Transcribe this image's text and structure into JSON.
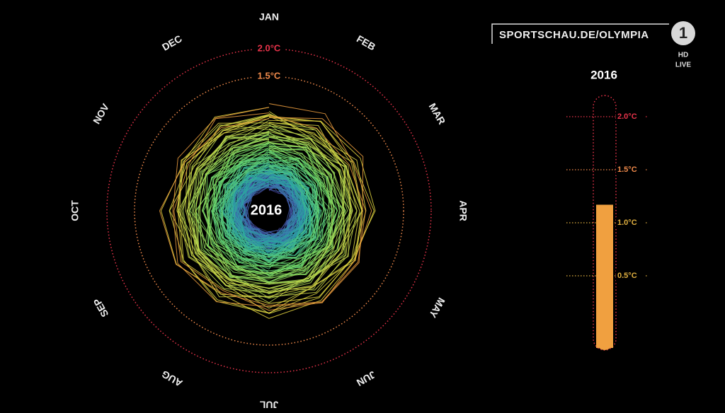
{
  "overlay": {
    "channel_url": "SPORTSCHAU.DE/OLYMPIA",
    "logo": "1",
    "badge": [
      "HD",
      "LIVE"
    ]
  },
  "spiral": {
    "center_label": "2016",
    "months": [
      "JAN",
      "FEB",
      "MAR",
      "APR",
      "MAY",
      "JUN",
      "JUL",
      "AUG",
      "SEP",
      "OCT",
      "NOV",
      "DEC"
    ],
    "rings": [
      {
        "value": 1.5,
        "label": "1.5°C",
        "color": "#f08a4b"
      },
      {
        "value": 2.0,
        "label": "2.0°C",
        "color": "#e8334a"
      }
    ]
  },
  "thermometer": {
    "type": "gauge",
    "title": "2016",
    "value": 1.17,
    "color": "#f0a040",
    "ylim": [
      -0.2,
      2.2
    ],
    "yticks": [
      {
        "value": 0.5,
        "label": "0.5°C"
      },
      {
        "value": 1.0,
        "label": "1.0°C"
      },
      {
        "value": 1.5,
        "label": "1.5°C"
      },
      {
        "value": 2.0,
        "label": "2.0°C"
      }
    ]
  }
}
